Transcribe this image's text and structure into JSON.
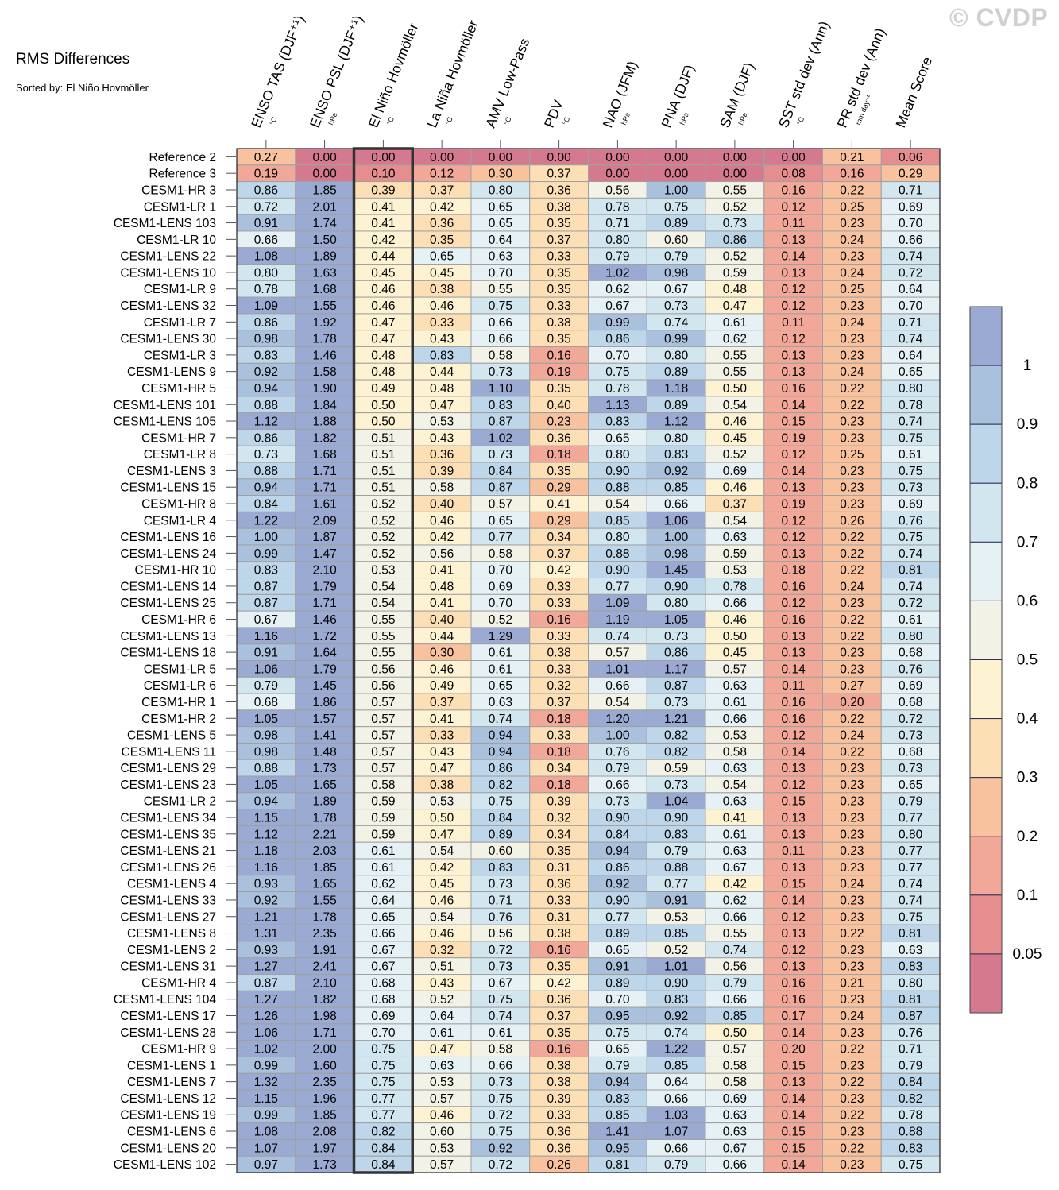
{
  "watermark": "© CVDP",
  "chart_data": {
    "type": "heatmap",
    "title": "RMS Differences",
    "subtitle": "Sorted by: El Niño Hovmöller",
    "sorted_column": "El Niño Hovmöller",
    "columns": [
      {
        "name": "ENSO TAS (DJF⁺¹)",
        "unit": "°C"
      },
      {
        "name": "ENSO PSL (DJF⁺¹)",
        "unit": "hPa"
      },
      {
        "name": "El Niño Hovmöller",
        "unit": "°C"
      },
      {
        "name": "La Niña Hovmöller",
        "unit": "°C"
      },
      {
        "name": "AMV Low-Pass",
        "unit": "°C"
      },
      {
        "name": "PDV",
        "unit": "°C"
      },
      {
        "name": "NAO (JFM)",
        "unit": "hPa"
      },
      {
        "name": "PNA (DJF)",
        "unit": "hPa"
      },
      {
        "name": "SAM (DJF)",
        "unit": "hPa"
      },
      {
        "name": "SST std dev (Ann)",
        "unit": "°C"
      },
      {
        "name": "PR std dev (Ann)",
        "unit": "mm day⁻¹"
      },
      {
        "name": "Mean Score",
        "unit": ""
      }
    ],
    "rows": [
      {
        "label": "Reference 2",
        "values": [
          "0.27",
          "0.00",
          "0.00",
          "0.00",
          "0.00",
          "0.00",
          "0.00",
          "0.00",
          "0.00",
          "0.00",
          "0.21",
          "0.06"
        ]
      },
      {
        "label": "Reference 3",
        "values": [
          "0.19",
          "0.00",
          "0.10",
          "0.12",
          "0.30",
          "0.37",
          "0.00",
          "0.00",
          "0.00",
          "0.08",
          "0.16",
          "0.29"
        ]
      },
      {
        "label": "CESM1-HR 3",
        "values": [
          "0.86",
          "1.85",
          "0.39",
          "0.37",
          "0.80",
          "0.36",
          "0.56",
          "1.00",
          "0.55",
          "0.16",
          "0.22",
          "0.71"
        ]
      },
      {
        "label": "CESM1-LR 1",
        "values": [
          "0.72",
          "2.01",
          "0.41",
          "0.42",
          "0.65",
          "0.38",
          "0.78",
          "0.75",
          "0.52",
          "0.12",
          "0.25",
          "0.69"
        ]
      },
      {
        "label": "CESM1-LENS 103",
        "values": [
          "0.91",
          "1.74",
          "0.41",
          "0.36",
          "0.65",
          "0.35",
          "0.71",
          "0.89",
          "0.73",
          "0.11",
          "0.23",
          "0.70"
        ]
      },
      {
        "label": "CESM1-LR 10",
        "values": [
          "0.66",
          "1.50",
          "0.42",
          "0.35",
          "0.64",
          "0.37",
          "0.80",
          "0.60",
          "0.86",
          "0.13",
          "0.24",
          "0.66"
        ]
      },
      {
        "label": "CESM1-LENS 22",
        "values": [
          "1.08",
          "1.89",
          "0.44",
          "0.65",
          "0.63",
          "0.33",
          "0.79",
          "0.79",
          "0.52",
          "0.14",
          "0.23",
          "0.74"
        ]
      },
      {
        "label": "CESM1-LENS 10",
        "values": [
          "0.80",
          "1.63",
          "0.45",
          "0.45",
          "0.70",
          "0.35",
          "1.02",
          "0.98",
          "0.59",
          "0.13",
          "0.24",
          "0.72"
        ]
      },
      {
        "label": "CESM1-LR 9",
        "values": [
          "0.78",
          "1.68",
          "0.46",
          "0.38",
          "0.55",
          "0.35",
          "0.62",
          "0.67",
          "0.48",
          "0.12",
          "0.25",
          "0.64"
        ]
      },
      {
        "label": "CESM1-LENS 32",
        "values": [
          "1.09",
          "1.55",
          "0.46",
          "0.46",
          "0.75",
          "0.33",
          "0.67",
          "0.73",
          "0.47",
          "0.12",
          "0.23",
          "0.70"
        ]
      },
      {
        "label": "CESM1-LR 7",
        "values": [
          "0.86",
          "1.92",
          "0.47",
          "0.33",
          "0.66",
          "0.38",
          "0.99",
          "0.74",
          "0.61",
          "0.11",
          "0.24",
          "0.71"
        ]
      },
      {
        "label": "CESM1-LENS 30",
        "values": [
          "0.98",
          "1.78",
          "0.47",
          "0.43",
          "0.66",
          "0.35",
          "0.86",
          "0.99",
          "0.62",
          "0.12",
          "0.23",
          "0.74"
        ]
      },
      {
        "label": "CESM1-LR 3",
        "values": [
          "0.83",
          "1.46",
          "0.48",
          "0.83",
          "0.58",
          "0.16",
          "0.70",
          "0.80",
          "0.55",
          "0.13",
          "0.23",
          "0.64"
        ]
      },
      {
        "label": "CESM1-LENS 9",
        "values": [
          "0.92",
          "1.58",
          "0.48",
          "0.44",
          "0.73",
          "0.19",
          "0.75",
          "0.89",
          "0.55",
          "0.13",
          "0.24",
          "0.65"
        ]
      },
      {
        "label": "CESM1-HR 5",
        "values": [
          "0.94",
          "1.90",
          "0.49",
          "0.48",
          "1.10",
          "0.35",
          "0.78",
          "1.18",
          "0.50",
          "0.16",
          "0.22",
          "0.80"
        ]
      },
      {
        "label": "CESM1-LENS 101",
        "values": [
          "0.88",
          "1.84",
          "0.50",
          "0.47",
          "0.83",
          "0.40",
          "1.13",
          "0.89",
          "0.54",
          "0.14",
          "0.22",
          "0.78"
        ]
      },
      {
        "label": "CESM1-LENS 105",
        "values": [
          "1.12",
          "1.88",
          "0.50",
          "0.53",
          "0.87",
          "0.23",
          "0.83",
          "1.12",
          "0.46",
          "0.15",
          "0.23",
          "0.74"
        ]
      },
      {
        "label": "CESM1-HR 7",
        "values": [
          "0.86",
          "1.82",
          "0.51",
          "0.43",
          "1.02",
          "0.36",
          "0.65",
          "0.80",
          "0.45",
          "0.19",
          "0.23",
          "0.75"
        ]
      },
      {
        "label": "CESM1-LR 8",
        "values": [
          "0.73",
          "1.68",
          "0.51",
          "0.36",
          "0.73",
          "0.18",
          "0.80",
          "0.83",
          "0.52",
          "0.12",
          "0.25",
          "0.61"
        ]
      },
      {
        "label": "CESM1-LENS 3",
        "values": [
          "0.88",
          "1.71",
          "0.51",
          "0.39",
          "0.84",
          "0.35",
          "0.90",
          "0.92",
          "0.69",
          "0.14",
          "0.23",
          "0.75"
        ]
      },
      {
        "label": "CESM1-LENS 15",
        "values": [
          "0.94",
          "1.71",
          "0.51",
          "0.58",
          "0.87",
          "0.29",
          "0.88",
          "0.85",
          "0.46",
          "0.13",
          "0.23",
          "0.73"
        ]
      },
      {
        "label": "CESM1-HR 8",
        "values": [
          "0.84",
          "1.61",
          "0.52",
          "0.40",
          "0.57",
          "0.41",
          "0.54",
          "0.66",
          "0.37",
          "0.19",
          "0.23",
          "0.69"
        ]
      },
      {
        "label": "CESM1-LR 4",
        "values": [
          "1.22",
          "2.09",
          "0.52",
          "0.46",
          "0.65",
          "0.29",
          "0.85",
          "1.06",
          "0.54",
          "0.12",
          "0.26",
          "0.76"
        ]
      },
      {
        "label": "CESM1-LENS 16",
        "values": [
          "1.00",
          "1.87",
          "0.52",
          "0.42",
          "0.77",
          "0.34",
          "0.80",
          "1.00",
          "0.63",
          "0.12",
          "0.22",
          "0.75"
        ]
      },
      {
        "label": "CESM1-LENS 24",
        "values": [
          "0.99",
          "1.47",
          "0.52",
          "0.56",
          "0.58",
          "0.37",
          "0.88",
          "0.98",
          "0.59",
          "0.13",
          "0.22",
          "0.74"
        ]
      },
      {
        "label": "CESM1-HR 10",
        "values": [
          "0.83",
          "2.10",
          "0.53",
          "0.41",
          "0.70",
          "0.42",
          "0.90",
          "1.45",
          "0.53",
          "0.18",
          "0.22",
          "0.81"
        ]
      },
      {
        "label": "CESM1-LENS 14",
        "values": [
          "0.87",
          "1.79",
          "0.54",
          "0.48",
          "0.69",
          "0.33",
          "0.77",
          "0.90",
          "0.78",
          "0.16",
          "0.24",
          "0.74"
        ]
      },
      {
        "label": "CESM1-LENS 25",
        "values": [
          "0.87",
          "1.71",
          "0.54",
          "0.41",
          "0.70",
          "0.33",
          "1.09",
          "0.80",
          "0.66",
          "0.12",
          "0.23",
          "0.72"
        ]
      },
      {
        "label": "CESM1-HR 6",
        "values": [
          "0.67",
          "1.46",
          "0.55",
          "0.40",
          "0.52",
          "0.16",
          "1.19",
          "1.05",
          "0.46",
          "0.16",
          "0.22",
          "0.61"
        ]
      },
      {
        "label": "CESM1-LENS 13",
        "values": [
          "1.16",
          "1.72",
          "0.55",
          "0.44",
          "1.29",
          "0.33",
          "0.74",
          "0.73",
          "0.50",
          "0.13",
          "0.22",
          "0.80"
        ]
      },
      {
        "label": "CESM1-LENS 18",
        "values": [
          "0.91",
          "1.64",
          "0.55",
          "0.30",
          "0.61",
          "0.38",
          "0.57",
          "0.86",
          "0.45",
          "0.13",
          "0.23",
          "0.68"
        ]
      },
      {
        "label": "CESM1-LR 5",
        "values": [
          "1.06",
          "1.79",
          "0.56",
          "0.46",
          "0.61",
          "0.33",
          "1.01",
          "1.17",
          "0.57",
          "0.14",
          "0.23",
          "0.76"
        ]
      },
      {
        "label": "CESM1-LR 6",
        "values": [
          "0.79",
          "1.45",
          "0.56",
          "0.49",
          "0.65",
          "0.32",
          "0.66",
          "0.87",
          "0.63",
          "0.11",
          "0.27",
          "0.69"
        ]
      },
      {
        "label": "CESM1-HR 1",
        "values": [
          "0.68",
          "1.86",
          "0.57",
          "0.37",
          "0.63",
          "0.37",
          "0.54",
          "0.73",
          "0.61",
          "0.16",
          "0.20",
          "0.68"
        ]
      },
      {
        "label": "CESM1-HR 2",
        "values": [
          "1.05",
          "1.57",
          "0.57",
          "0.41",
          "0.74",
          "0.18",
          "1.20",
          "1.21",
          "0.66",
          "0.16",
          "0.22",
          "0.72"
        ]
      },
      {
        "label": "CESM1-LENS 5",
        "values": [
          "0.98",
          "1.41",
          "0.57",
          "0.33",
          "0.94",
          "0.33",
          "1.00",
          "0.82",
          "0.53",
          "0.12",
          "0.24",
          "0.73"
        ]
      },
      {
        "label": "CESM1-LENS 11",
        "values": [
          "0.98",
          "1.48",
          "0.57",
          "0.43",
          "0.94",
          "0.18",
          "0.76",
          "0.82",
          "0.58",
          "0.14",
          "0.22",
          "0.68"
        ]
      },
      {
        "label": "CESM1-LENS 29",
        "values": [
          "0.88",
          "1.73",
          "0.57",
          "0.47",
          "0.86",
          "0.34",
          "0.79",
          "0.59",
          "0.63",
          "0.13",
          "0.23",
          "0.73"
        ]
      },
      {
        "label": "CESM1-LENS 23",
        "values": [
          "1.05",
          "1.65",
          "0.58",
          "0.38",
          "0.82",
          "0.18",
          "0.66",
          "0.73",
          "0.54",
          "0.12",
          "0.23",
          "0.65"
        ]
      },
      {
        "label": "CESM1-LR 2",
        "values": [
          "0.94",
          "1.89",
          "0.59",
          "0.53",
          "0.75",
          "0.39",
          "0.73",
          "1.04",
          "0.63",
          "0.15",
          "0.23",
          "0.79"
        ]
      },
      {
        "label": "CESM1-LENS 34",
        "values": [
          "1.15",
          "1.78",
          "0.59",
          "0.50",
          "0.84",
          "0.32",
          "0.90",
          "0.90",
          "0.41",
          "0.13",
          "0.23",
          "0.77"
        ]
      },
      {
        "label": "CESM1-LENS 35",
        "values": [
          "1.12",
          "2.21",
          "0.59",
          "0.47",
          "0.89",
          "0.34",
          "0.84",
          "0.83",
          "0.61",
          "0.13",
          "0.23",
          "0.80"
        ]
      },
      {
        "label": "CESM1-LENS 21",
        "values": [
          "1.18",
          "2.03",
          "0.61",
          "0.54",
          "0.60",
          "0.35",
          "0.94",
          "0.79",
          "0.63",
          "0.11",
          "0.23",
          "0.77"
        ]
      },
      {
        "label": "CESM1-LENS 26",
        "values": [
          "1.16",
          "1.85",
          "0.61",
          "0.42",
          "0.83",
          "0.31",
          "0.86",
          "0.88",
          "0.67",
          "0.13",
          "0.23",
          "0.77"
        ]
      },
      {
        "label": "CESM1-LENS 4",
        "values": [
          "0.93",
          "1.65",
          "0.62",
          "0.45",
          "0.73",
          "0.36",
          "0.92",
          "0.77",
          "0.42",
          "0.15",
          "0.24",
          "0.74"
        ]
      },
      {
        "label": "CESM1-LENS 33",
        "values": [
          "0.92",
          "1.55",
          "0.64",
          "0.46",
          "0.71",
          "0.33",
          "0.90",
          "0.91",
          "0.62",
          "0.14",
          "0.23",
          "0.74"
        ]
      },
      {
        "label": "CESM1-LENS 27",
        "values": [
          "1.21",
          "1.78",
          "0.65",
          "0.54",
          "0.76",
          "0.31",
          "0.77",
          "0.53",
          "0.66",
          "0.12",
          "0.23",
          "0.75"
        ]
      },
      {
        "label": "CESM1-LENS 8",
        "values": [
          "1.31",
          "2.35",
          "0.66",
          "0.46",
          "0.56",
          "0.38",
          "0.89",
          "0.85",
          "0.55",
          "0.13",
          "0.22",
          "0.81"
        ]
      },
      {
        "label": "CESM1-LENS 2",
        "values": [
          "0.93",
          "1.91",
          "0.67",
          "0.32",
          "0.72",
          "0.16",
          "0.65",
          "0.52",
          "0.74",
          "0.12",
          "0.23",
          "0.63"
        ]
      },
      {
        "label": "CESM1-LENS 31",
        "values": [
          "1.27",
          "2.41",
          "0.67",
          "0.51",
          "0.73",
          "0.35",
          "0.91",
          "1.01",
          "0.56",
          "0.13",
          "0.23",
          "0.83"
        ]
      },
      {
        "label": "CESM1-HR 4",
        "values": [
          "0.87",
          "2.10",
          "0.68",
          "0.43",
          "0.67",
          "0.42",
          "0.89",
          "0.90",
          "0.79",
          "0.16",
          "0.21",
          "0.80"
        ]
      },
      {
        "label": "CESM1-LENS 104",
        "values": [
          "1.27",
          "1.82",
          "0.68",
          "0.52",
          "0.75",
          "0.36",
          "0.70",
          "0.83",
          "0.66",
          "0.16",
          "0.23",
          "0.81"
        ]
      },
      {
        "label": "CESM1-LENS 17",
        "values": [
          "1.26",
          "1.98",
          "0.69",
          "0.64",
          "0.74",
          "0.37",
          "0.95",
          "0.92",
          "0.85",
          "0.17",
          "0.24",
          "0.87"
        ]
      },
      {
        "label": "CESM1-LENS 28",
        "values": [
          "1.06",
          "1.71",
          "0.70",
          "0.61",
          "0.61",
          "0.35",
          "0.75",
          "0.74",
          "0.50",
          "0.14",
          "0.23",
          "0.76"
        ]
      },
      {
        "label": "CESM1-HR 9",
        "values": [
          "1.02",
          "2.00",
          "0.75",
          "0.47",
          "0.58",
          "0.16",
          "0.65",
          "1.22",
          "0.57",
          "0.20",
          "0.22",
          "0.71"
        ]
      },
      {
        "label": "CESM1-LENS 1",
        "values": [
          "0.99",
          "1.60",
          "0.75",
          "0.63",
          "0.66",
          "0.38",
          "0.79",
          "0.85",
          "0.58",
          "0.15",
          "0.23",
          "0.79"
        ]
      },
      {
        "label": "CESM1-LENS 7",
        "values": [
          "1.32",
          "2.35",
          "0.75",
          "0.53",
          "0.73",
          "0.38",
          "0.94",
          "0.64",
          "0.58",
          "0.13",
          "0.22",
          "0.84"
        ]
      },
      {
        "label": "CESM1-LENS 12",
        "values": [
          "1.15",
          "1.96",
          "0.77",
          "0.57",
          "0.75",
          "0.39",
          "0.83",
          "0.66",
          "0.69",
          "0.14",
          "0.23",
          "0.82"
        ]
      },
      {
        "label": "CESM1-LENS 19",
        "values": [
          "0.99",
          "1.85",
          "0.77",
          "0.46",
          "0.72",
          "0.33",
          "0.85",
          "1.03",
          "0.63",
          "0.14",
          "0.22",
          "0.78"
        ]
      },
      {
        "label": "CESM1-LENS 6",
        "values": [
          "1.08",
          "2.08",
          "0.82",
          "0.60",
          "0.75",
          "0.36",
          "1.41",
          "1.07",
          "0.63",
          "0.15",
          "0.23",
          "0.88"
        ]
      },
      {
        "label": "CESM1-LENS 20",
        "values": [
          "1.07",
          "1.97",
          "0.84",
          "0.53",
          "0.92",
          "0.36",
          "0.95",
          "0.66",
          "0.67",
          "0.15",
          "0.22",
          "0.83"
        ]
      },
      {
        "label": "CESM1-LENS 102",
        "values": [
          "0.97",
          "1.73",
          "0.84",
          "0.57",
          "0.72",
          "0.26",
          "0.81",
          "0.79",
          "0.66",
          "0.14",
          "0.23",
          "0.75"
        ]
      }
    ],
    "colorbar": {
      "labels": [
        "1",
        "0.9",
        "0.8",
        "0.7",
        "0.6",
        "0.5",
        "0.4",
        "0.3",
        "0.2",
        "0.1",
        "0.05"
      ],
      "colors_top_to_bottom": [
        "#9aaad2",
        "#aac1de",
        "#bdd6e9",
        "#d2e6f0",
        "#e5f1f4",
        "#f3f2e6",
        "#fdf2d1",
        "#fcdfb4",
        "#f8c29e",
        "#f2a898",
        "#e68e8f",
        "#d57a8e"
      ]
    }
  }
}
